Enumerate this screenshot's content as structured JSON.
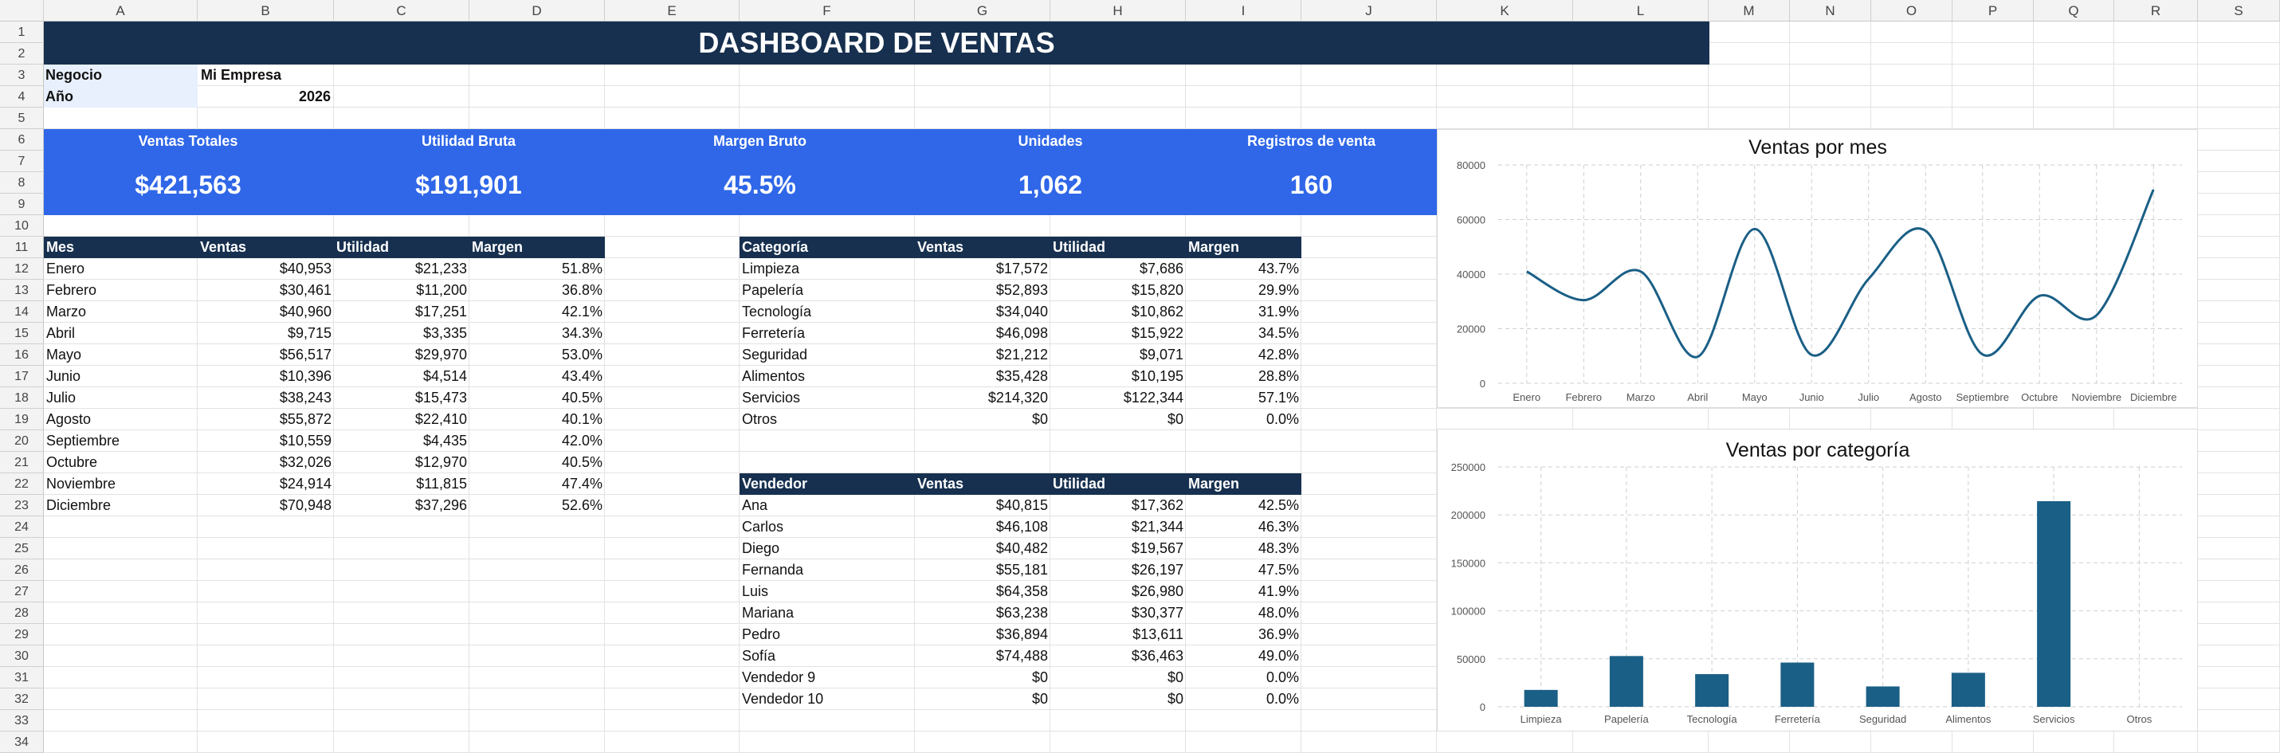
{
  "columns": [
    "A",
    "B",
    "C",
    "D",
    "E",
    "F",
    "G",
    "H",
    "I",
    "J",
    "K",
    "L",
    "M",
    "N",
    "O",
    "P",
    "Q",
    "R",
    "S"
  ],
  "rows": [
    "1",
    "2",
    "3",
    "4",
    "5",
    "6",
    "7",
    "8",
    "9",
    "10",
    "11",
    "12",
    "13",
    "14",
    "15",
    "16",
    "17",
    "18",
    "19",
    "20",
    "21",
    "22",
    "23",
    "24",
    "25",
    "26",
    "27",
    "28",
    "29",
    "30",
    "31",
    "32",
    "33",
    "34"
  ],
  "title": "DASHBOARD DE VENTAS",
  "info": {
    "business_label": "Negocio",
    "business_value": "Mi Empresa",
    "year_label": "Año",
    "year_value": "2026"
  },
  "kpis": [
    {
      "label": "Ventas Totales",
      "value": "$421,563"
    },
    {
      "label": "Utilidad Bruta",
      "value": "$191,901"
    },
    {
      "label": "Margen Bruto",
      "value": "45.5%"
    },
    {
      "label": "Unidades",
      "value": "1,062"
    },
    {
      "label": "Registros de venta",
      "value": "160"
    }
  ],
  "monthly": {
    "headers": [
      "Mes",
      "Ventas",
      "Utilidad",
      "Margen"
    ],
    "rows": [
      [
        "Enero",
        "$40,953",
        "$21,233",
        "51.8%"
      ],
      [
        "Febrero",
        "$30,461",
        "$11,200",
        "36.8%"
      ],
      [
        "Marzo",
        "$40,960",
        "$17,251",
        "42.1%"
      ],
      [
        "Abril",
        "$9,715",
        "$3,335",
        "34.3%"
      ],
      [
        "Mayo",
        "$56,517",
        "$29,970",
        "53.0%"
      ],
      [
        "Junio",
        "$10,396",
        "$4,514",
        "43.4%"
      ],
      [
        "Julio",
        "$38,243",
        "$15,473",
        "40.5%"
      ],
      [
        "Agosto",
        "$55,872",
        "$22,410",
        "40.1%"
      ],
      [
        "Septiembre",
        "$10,559",
        "$4,435",
        "42.0%"
      ],
      [
        "Octubre",
        "$32,026",
        "$12,970",
        "40.5%"
      ],
      [
        "Noviembre",
        "$24,914",
        "$11,815",
        "47.4%"
      ],
      [
        "Diciembre",
        "$70,948",
        "$37,296",
        "52.6%"
      ]
    ]
  },
  "categories": {
    "headers": [
      "Categoría",
      "Ventas",
      "Utilidad",
      "Margen"
    ],
    "rows": [
      [
        "Limpieza",
        "$17,572",
        "$7,686",
        "43.7%"
      ],
      [
        "Papelería",
        "$52,893",
        "$15,820",
        "29.9%"
      ],
      [
        "Tecnología",
        "$34,040",
        "$10,862",
        "31.9%"
      ],
      [
        "Ferretería",
        "$46,098",
        "$15,922",
        "34.5%"
      ],
      [
        "Seguridad",
        "$21,212",
        "$9,071",
        "42.8%"
      ],
      [
        "Alimentos",
        "$35,428",
        "$10,195",
        "28.8%"
      ],
      [
        "Servicios",
        "$214,320",
        "$122,344",
        "57.1%"
      ],
      [
        "Otros",
        "$0",
        "$0",
        "0.0%"
      ]
    ]
  },
  "sellers": {
    "headers": [
      "Vendedor",
      "Ventas",
      "Utilidad",
      "Margen"
    ],
    "rows": [
      [
        "Ana",
        "$40,815",
        "$17,362",
        "42.5%"
      ],
      [
        "Carlos",
        "$46,108",
        "$21,344",
        "46.3%"
      ],
      [
        "Diego",
        "$40,482",
        "$19,567",
        "48.3%"
      ],
      [
        "Fernanda",
        "$55,181",
        "$26,197",
        "47.5%"
      ],
      [
        "Luis",
        "$64,358",
        "$26,980",
        "41.9%"
      ],
      [
        "Mariana",
        "$63,238",
        "$30,377",
        "48.0%"
      ],
      [
        "Pedro",
        "$36,894",
        "$13,611",
        "36.9%"
      ],
      [
        "Sofía",
        "$74,488",
        "$36,463",
        "49.0%"
      ],
      [
        "Vendedor 9",
        "$0",
        "$0",
        "0.0%"
      ],
      [
        "Vendedor 10",
        "$0",
        "$0",
        "0.0%"
      ]
    ]
  },
  "chart_data": [
    {
      "type": "line",
      "title": "Ventas por mes",
      "categories": [
        "Enero",
        "Febrero",
        "Marzo",
        "Abril",
        "Mayo",
        "Junio",
        "Julio",
        "Agosto",
        "Septiembre",
        "Octubre",
        "Noviembre",
        "Diciembre"
      ],
      "values": [
        40953,
        30461,
        40960,
        9715,
        56517,
        10396,
        38243,
        55872,
        10559,
        32026,
        24914,
        70948
      ],
      "yticks": [
        "0",
        "20000",
        "40000",
        "60000",
        "80000"
      ],
      "ylim": [
        0,
        80000
      ],
      "grid": true,
      "color": "#1a5f86"
    },
    {
      "type": "bar",
      "title": "Ventas por categoría",
      "categories": [
        "Limpieza",
        "Papelería",
        "Tecnología",
        "Ferretería",
        "Seguridad",
        "Alimentos",
        "Servicios",
        "Otros"
      ],
      "values": [
        17572,
        52893,
        34040,
        46098,
        21212,
        35428,
        214320,
        0
      ],
      "yticks": [
        "0",
        "50000",
        "100000",
        "150000",
        "200000",
        "250000"
      ],
      "ylim": [
        0,
        250000
      ],
      "grid": true,
      "color": "#1a5f86"
    }
  ]
}
